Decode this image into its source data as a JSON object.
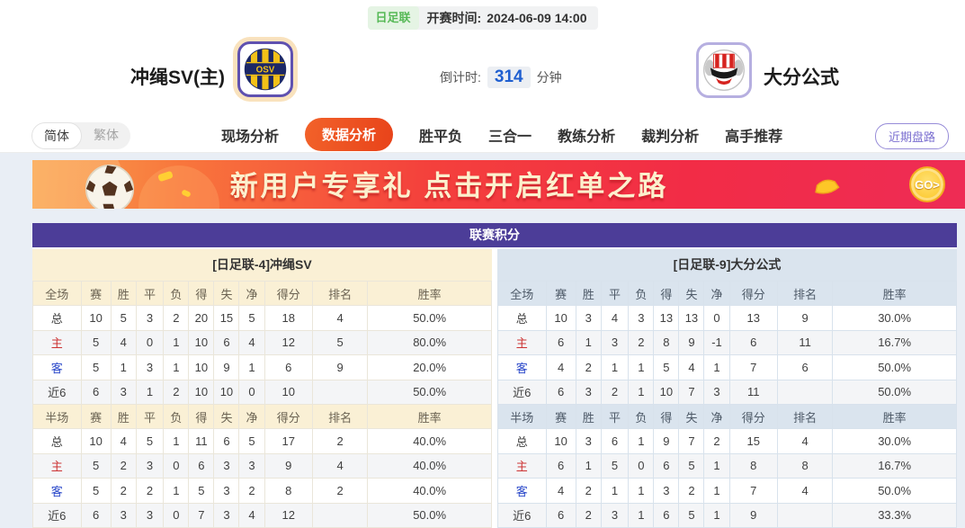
{
  "header": {
    "league_badge": "日足联",
    "kickoff_label": "开赛时间:",
    "kickoff_time": "2024-06-09 14:00",
    "home_team": "冲绳SV(主)",
    "home_logo_text": "OSV",
    "away_team": "大分公式",
    "countdown_label": "倒计时:",
    "countdown_value": "314",
    "countdown_unit": "分钟"
  },
  "nav": {
    "lang_simplified": "简体",
    "lang_traditional": "繁体",
    "items": [
      {
        "key": "live-analysis",
        "label": "现场分析",
        "active": false
      },
      {
        "key": "data-analysis",
        "label": "数据分析",
        "active": true
      },
      {
        "key": "win-draw-lose",
        "label": "胜平负",
        "active": false
      },
      {
        "key": "three-in-one",
        "label": "三合一",
        "active": false
      },
      {
        "key": "coach-analysis",
        "label": "教练分析",
        "active": false
      },
      {
        "key": "referee-analysis",
        "label": "裁判分析",
        "active": false
      },
      {
        "key": "expert-picks",
        "label": "高手推荐",
        "active": false
      }
    ],
    "recent_handicap": "近期盘路"
  },
  "banner": {
    "text": "新用户专享礼 点击开启红单之路",
    "go_label": "GO>"
  },
  "league_table": {
    "title": "联赛积分",
    "home": {
      "header": "[日足联-4]冲绳SV",
      "full_columns": [
        "全场",
        "赛",
        "胜",
        "平",
        "负",
        "得",
        "失",
        "净",
        "得分",
        "排名",
        "胜率"
      ],
      "full_rows": [
        {
          "label": "总",
          "values": [
            "10",
            "5",
            "3",
            "2",
            "20",
            "15",
            "5",
            "18",
            "4",
            "50.0%"
          ]
        },
        {
          "label": "主",
          "values": [
            "5",
            "4",
            "0",
            "1",
            "10",
            "6",
            "4",
            "12",
            "5",
            "80.0%"
          ]
        },
        {
          "label": "客",
          "values": [
            "5",
            "1",
            "3",
            "1",
            "10",
            "9",
            "1",
            "6",
            "9",
            "20.0%"
          ]
        },
        {
          "label": "近6",
          "values": [
            "6",
            "3",
            "1",
            "2",
            "10",
            "10",
            "0",
            "10",
            "",
            "50.0%"
          ]
        }
      ],
      "half_columns": [
        "半场",
        "赛",
        "胜",
        "平",
        "负",
        "得",
        "失",
        "净",
        "得分",
        "排名",
        "胜率"
      ],
      "half_rows": [
        {
          "label": "总",
          "values": [
            "10",
            "4",
            "5",
            "1",
            "11",
            "6",
            "5",
            "17",
            "2",
            "40.0%"
          ]
        },
        {
          "label": "主",
          "values": [
            "5",
            "2",
            "3",
            "0",
            "6",
            "3",
            "3",
            "9",
            "4",
            "40.0%"
          ]
        },
        {
          "label": "客",
          "values": [
            "5",
            "2",
            "2",
            "1",
            "5",
            "3",
            "2",
            "8",
            "2",
            "40.0%"
          ]
        },
        {
          "label": "近6",
          "values": [
            "6",
            "3",
            "3",
            "0",
            "7",
            "3",
            "4",
            "12",
            "",
            "50.0%"
          ]
        }
      ]
    },
    "away": {
      "header": "[日足联-9]大分公式",
      "full_columns": [
        "全场",
        "赛",
        "胜",
        "平",
        "负",
        "得",
        "失",
        "净",
        "得分",
        "排名",
        "胜率"
      ],
      "full_rows": [
        {
          "label": "总",
          "values": [
            "10",
            "3",
            "4",
            "3",
            "13",
            "13",
            "0",
            "13",
            "9",
            "30.0%"
          ]
        },
        {
          "label": "主",
          "values": [
            "6",
            "1",
            "3",
            "2",
            "8",
            "9",
            "-1",
            "6",
            "11",
            "16.7%"
          ]
        },
        {
          "label": "客",
          "values": [
            "4",
            "2",
            "1",
            "1",
            "5",
            "4",
            "1",
            "7",
            "6",
            "50.0%"
          ]
        },
        {
          "label": "近6",
          "values": [
            "6",
            "3",
            "2",
            "1",
            "10",
            "7",
            "3",
            "11",
            "",
            "50.0%"
          ]
        }
      ],
      "half_columns": [
        "半场",
        "赛",
        "胜",
        "平",
        "负",
        "得",
        "失",
        "净",
        "得分",
        "排名",
        "胜率"
      ],
      "half_rows": [
        {
          "label": "总",
          "values": [
            "10",
            "3",
            "6",
            "1",
            "9",
            "7",
            "2",
            "15",
            "4",
            "30.0%"
          ]
        },
        {
          "label": "主",
          "values": [
            "6",
            "1",
            "5",
            "0",
            "6",
            "5",
            "1",
            "8",
            "8",
            "16.7%"
          ]
        },
        {
          "label": "客",
          "values": [
            "4",
            "2",
            "1",
            "1",
            "3",
            "2",
            "1",
            "7",
            "4",
            "50.0%"
          ]
        },
        {
          "label": "近6",
          "values": [
            "6",
            "2",
            "3",
            "1",
            "6",
            "5",
            "1",
            "9",
            "",
            "33.3%"
          ]
        }
      ]
    }
  },
  "colors": {
    "accent_orange": "#e8431a",
    "table_title_purple": "#4c3d98",
    "home_header_cream": "#faf0d5",
    "away_header_blue": "#dae4ee",
    "home_row_label_red": "#cc3333",
    "away_row_label_blue": "#2947c9",
    "league_badge_green": "#57b957",
    "countdown_blue": "#1f5fd0",
    "banner_gradient_start": "#f9a24f",
    "banner_gradient_end": "#ee2c55",
    "go_coin_gold": "#fcc41f"
  }
}
